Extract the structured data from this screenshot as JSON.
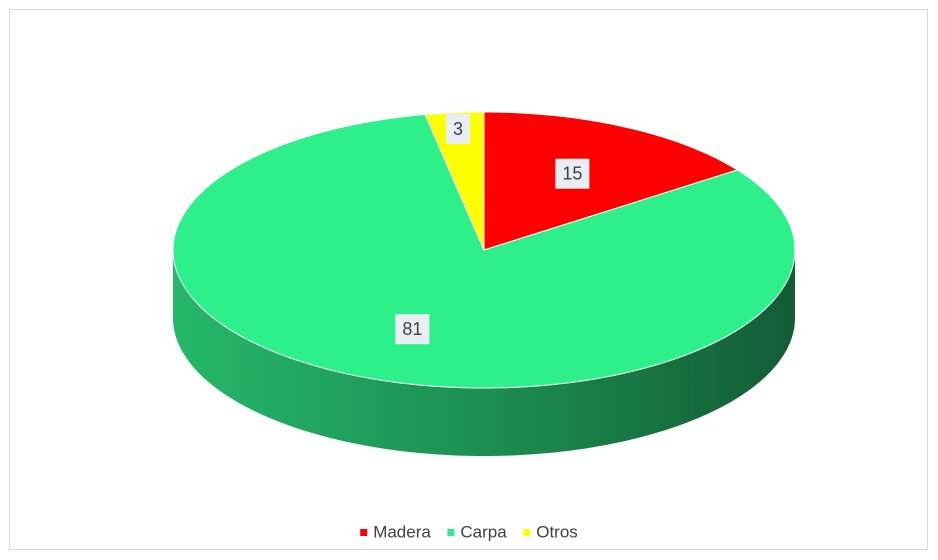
{
  "chart_data": {
    "type": "pie3d",
    "categories": [
      "Madera",
      "Carpa",
      "Otros"
    ],
    "values": [
      15,
      81,
      3
    ],
    "colors": [
      "#ff0000",
      "#2ef08a",
      "#ffff00"
    ],
    "side_colors": [
      "#b00000",
      "#1e9e5a",
      "#b0b000"
    ],
    "legend": "bottom"
  }
}
